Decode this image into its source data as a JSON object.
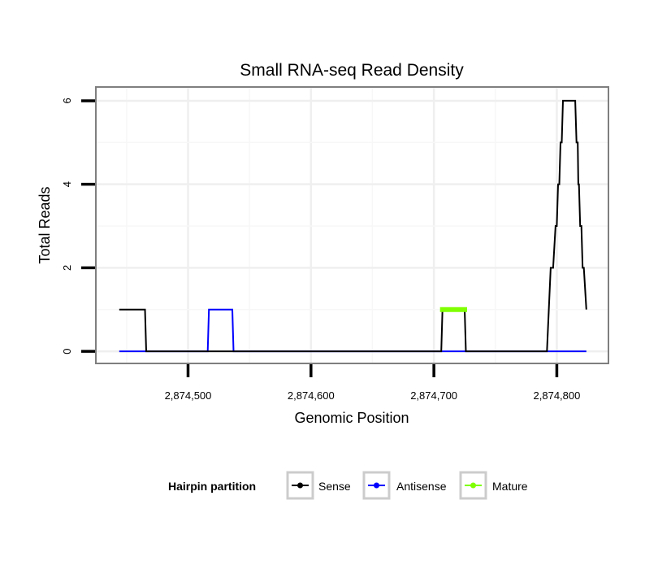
{
  "chart_data": {
    "type": "line",
    "title": "Small RNA-seq Read Density",
    "xlabel": "Genomic Position",
    "ylabel": "Total Reads",
    "xlim": [
      2874425,
      2874842
    ],
    "ylim": [
      -0.29,
      6.33
    ],
    "x_ticks": [
      2874500,
      2874600,
      2874700,
      2874800
    ],
    "x_tick_labels": [
      "2,874,500",
      "2,874,600",
      "2,874,700",
      "2,874,800"
    ],
    "y_ticks": [
      0,
      2,
      4,
      6
    ],
    "y_tick_labels": [
      "0",
      "2",
      "4",
      "6"
    ],
    "grid": true,
    "legend": {
      "title": "Hairpin partition",
      "placement": "bottom",
      "entries": [
        "Sense",
        "Antisense",
        "Mature"
      ]
    },
    "series": [
      {
        "name": "Antisense",
        "color": "#0000ff",
        "width": 2,
        "points": [
          [
            2874444,
            0
          ],
          [
            2874516,
            0
          ],
          [
            2874517,
            1
          ],
          [
            2874536,
            1
          ],
          [
            2874537,
            0
          ],
          [
            2874824,
            0
          ]
        ]
      },
      {
        "name": "Sense",
        "color": "#000000",
        "width": 2,
        "points": [
          [
            2874444,
            1
          ],
          [
            2874465,
            1
          ],
          [
            2874466,
            0
          ],
          [
            2874706,
            0
          ],
          [
            2874707,
            1
          ],
          [
            2874725,
            1
          ],
          [
            2874726,
            0
          ],
          [
            2874792,
            0
          ],
          [
            2874795,
            2
          ],
          [
            2874797,
            2
          ],
          [
            2874799,
            3
          ],
          [
            2874800,
            3
          ],
          [
            2874801,
            4
          ],
          [
            2874802,
            4
          ],
          [
            2874803,
            5
          ],
          [
            2874804,
            5
          ],
          [
            2874805,
            6
          ],
          [
            2874815,
            6
          ],
          [
            2874816,
            5
          ],
          [
            2874817,
            5
          ],
          [
            2874817.5,
            4
          ],
          [
            2874818,
            4
          ],
          [
            2874819,
            3
          ],
          [
            2874820,
            3
          ],
          [
            2874821,
            2
          ],
          [
            2874822,
            2
          ],
          [
            2874824,
            1
          ]
        ]
      },
      {
        "name": "Mature",
        "color": "#7fff00",
        "width": 6,
        "points": [
          [
            2874705,
            1
          ],
          [
            2874727,
            1
          ]
        ]
      }
    ]
  }
}
